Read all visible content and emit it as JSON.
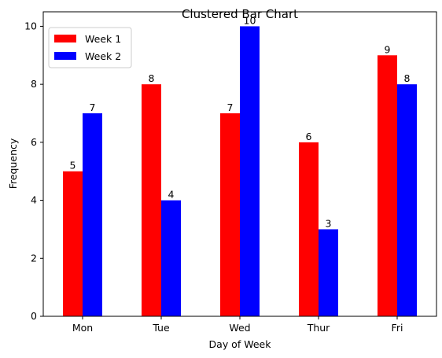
{
  "chart_data": {
    "type": "bar",
    "title": "Clustered Bar Chart",
    "xlabel": "Day of Week",
    "ylabel": "Frequency",
    "categories": [
      "Mon",
      "Tue",
      "Wed",
      "Thur",
      "Fri"
    ],
    "series": [
      {
        "name": "Week 1",
        "color": "#ff0000",
        "values": [
          5,
          8,
          7,
          6,
          9
        ]
      },
      {
        "name": "Week 2",
        "color": "#0000ff",
        "values": [
          7,
          4,
          10,
          3,
          8
        ]
      }
    ],
    "ylim": [
      0,
      10.5
    ],
    "yticks": [
      0,
      2,
      4,
      6,
      8,
      10
    ],
    "grid": false,
    "legend_position": "top-left",
    "data_labels": true
  }
}
